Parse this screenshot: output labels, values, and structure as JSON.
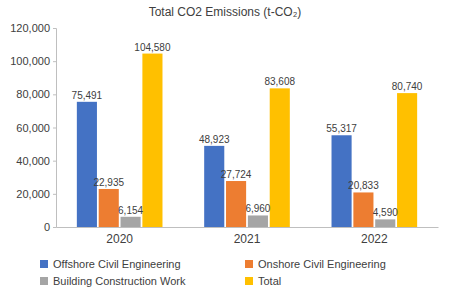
{
  "chart_data": {
    "type": "bar",
    "title": "Total CO2 Emissions (t-CO₂)",
    "categories": [
      "2020",
      "2021",
      "2022"
    ],
    "series": [
      {
        "name": "Offshore Civil Engineering",
        "color": "#4472c4",
        "values": [
          75491,
          48923,
          55317
        ],
        "value_labels": [
          "75,491",
          "48,923",
          "55,317"
        ]
      },
      {
        "name": "Onshore Civil Engineering",
        "color": "#ed7d31",
        "values": [
          22935,
          27724,
          20833
        ],
        "value_labels": [
          "22,935",
          "27,724",
          "20,833"
        ]
      },
      {
        "name": "Building Construction Work",
        "color": "#a5a5a5",
        "values": [
          6154,
          6960,
          4590
        ],
        "value_labels": [
          "6,154",
          "6,960",
          "4,590"
        ]
      },
      {
        "name": "Total",
        "color": "#ffc000",
        "values": [
          104580,
          83608,
          80740
        ],
        "value_labels": [
          "104,580",
          "83,608",
          "80,740"
        ]
      }
    ],
    "ylim": [
      0,
      120000
    ],
    "yticks": [
      0,
      {
        "value": 20000,
        "label": "20,000"
      },
      {
        "value": 40000,
        "label": "40,000"
      },
      {
        "value": 60000,
        "label": "60,000"
      },
      {
        "value": 80000,
        "label": "80,000"
      },
      {
        "value": 100000,
        "label": "100,000"
      },
      {
        "value": 120000,
        "label": "120,000"
      }
    ],
    "grid": false,
    "legend": "bottom",
    "data_labels": true
  }
}
